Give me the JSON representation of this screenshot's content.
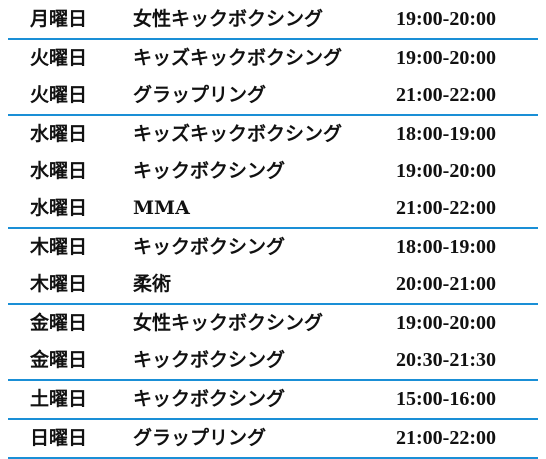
{
  "schedule": {
    "groups": [
      {
        "rows": [
          {
            "day": "月曜日",
            "class": "女性キックボクシング",
            "time": "19:00-20:00"
          }
        ]
      },
      {
        "rows": [
          {
            "day": "火曜日",
            "class": "キッズキックボクシング",
            "time": "19:00-20:00"
          },
          {
            "day": "火曜日",
            "class": "グラップリング",
            "time": "21:00-22:00"
          }
        ]
      },
      {
        "rows": [
          {
            "day": "水曜日",
            "class": "キッズキックボクシング",
            "time": "18:00-19:00"
          },
          {
            "day": "水曜日",
            "class": "キックボクシング",
            "time": "19:00-20:00"
          },
          {
            "day": "水曜日",
            "class": "MMA",
            "time": "21:00-22:00"
          }
        ]
      },
      {
        "rows": [
          {
            "day": "木曜日",
            "class": "キックボクシング",
            "time": "18:00-19:00"
          },
          {
            "day": "木曜日",
            "class": "柔術",
            "time": "20:00-21:00"
          }
        ]
      },
      {
        "rows": [
          {
            "day": "金曜日",
            "class": "女性キックボクシング",
            "time": "19:00-20:00"
          },
          {
            "day": "金曜日",
            "class": "キックボクシング",
            "time": "20:30-21:30"
          }
        ]
      },
      {
        "rows": [
          {
            "day": "土曜日",
            "class": "キックボクシング",
            "time": "15:00-16:00"
          }
        ]
      },
      {
        "rows": [
          {
            "day": "日曜日",
            "class": "グラップリング",
            "time": "21:00-22:00"
          }
        ]
      }
    ],
    "divider_color": "#1a8fd6"
  }
}
